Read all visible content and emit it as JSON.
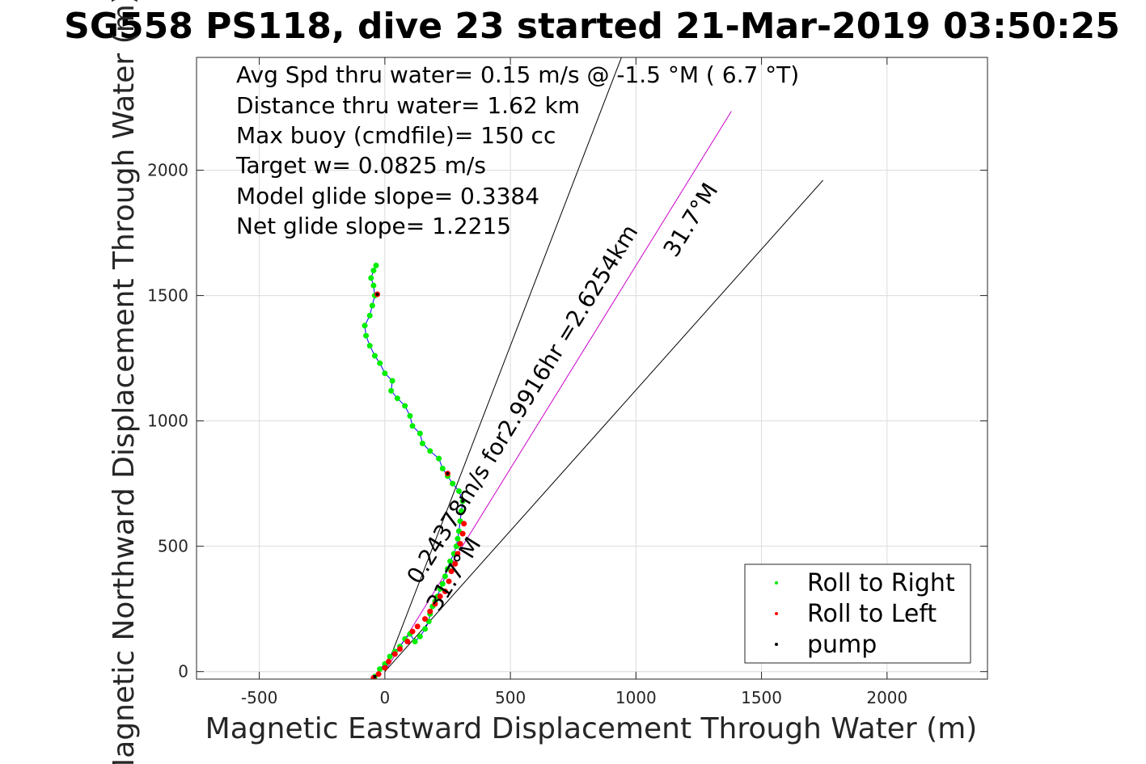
{
  "chart_data": {
    "type": "scatter",
    "title": "SG558 PS118, dive 23 started 21-Mar-2019 03:50:25",
    "xlabel": "Magnetic Eastward Displacement Through Water (m)",
    "ylabel": "Magnetic Northward Displacement Through Water (m)",
    "xlim": [
      -750,
      2400
    ],
    "ylim": [
      -30,
      2450
    ],
    "xticks": [
      -500,
      0,
      500,
      1000,
      1500,
      2000
    ],
    "xtick_labels": [
      "-500",
      "0",
      "500",
      "1000",
      "1500",
      "2000"
    ],
    "yticks": [
      0,
      500,
      1000,
      1500,
      2000
    ],
    "ytick_labels": [
      "0",
      "500",
      "1000",
      "1500",
      "2000"
    ],
    "grid": true,
    "legend_position": "bottom-right",
    "stats_lines": [
      "Avg Spd thru water=  0.15 m/s @  -1.5 °M (  6.7 °T)",
      "Distance thru water=  1.62 km",
      "Max buoy (cmdfile)= 150 cc",
      "Target w= 0.0825 m/s",
      "Model glide slope= 0.3384",
      "Net glide slope= 1.2215"
    ],
    "annotations": {
      "course_line_label": "0.24378m/s for2.9916hr =2.6254km",
      "course_heading_label": "31.7°M",
      "lower_heading_label": "31.7°M"
    },
    "series": [
      {
        "name": "Roll to Right",
        "color": "#00ee00",
        "points": [
          [
            -40,
            -20
          ],
          [
            -20,
            10
          ],
          [
            0,
            30
          ],
          [
            20,
            60
          ],
          [
            40,
            80
          ],
          [
            60,
            100
          ],
          [
            80,
            130
          ],
          [
            100,
            150
          ],
          [
            120,
            120
          ],
          [
            140,
            140
          ],
          [
            160,
            170
          ],
          [
            175,
            200
          ],
          [
            180,
            230
          ],
          [
            190,
            260
          ],
          [
            200,
            280
          ],
          [
            210,
            300
          ],
          [
            220,
            330
          ],
          [
            230,
            350
          ],
          [
            240,
            380
          ],
          [
            250,
            410
          ],
          [
            260,
            440
          ],
          [
            275,
            470
          ],
          [
            285,
            500
          ],
          [
            290,
            530
          ],
          [
            295,
            560
          ],
          [
            300,
            600
          ],
          [
            305,
            640
          ],
          [
            310,
            680
          ],
          [
            295,
            720
          ],
          [
            270,
            750
          ],
          [
            250,
            780
          ],
          [
            230,
            810
          ],
          [
            215,
            850
          ],
          [
            180,
            880
          ],
          [
            150,
            910
          ],
          [
            140,
            950
          ],
          [
            110,
            980
          ],
          [
            100,
            1020
          ],
          [
            80,
            1060
          ],
          [
            50,
            1090
          ],
          [
            25,
            1120
          ],
          [
            30,
            1160
          ],
          [
            0,
            1190
          ],
          [
            -20,
            1230
          ],
          [
            -40,
            1260
          ],
          [
            -60,
            1300
          ],
          [
            -75,
            1340
          ],
          [
            -80,
            1380
          ],
          [
            -60,
            1420
          ],
          [
            -50,
            1460
          ],
          [
            -40,
            1500
          ],
          [
            -45,
            1540
          ],
          [
            -55,
            1570
          ],
          [
            -45,
            1600
          ],
          [
            -35,
            1620
          ]
        ]
      },
      {
        "name": "Roll to Left",
        "color": "#ff0000",
        "points": [
          [
            -45,
            -25
          ],
          [
            -25,
            -10
          ],
          [
            0,
            15
          ],
          [
            15,
            40
          ],
          [
            40,
            70
          ],
          [
            60,
            90
          ],
          [
            90,
            120
          ],
          [
            110,
            160
          ],
          [
            130,
            180
          ],
          [
            160,
            210
          ],
          [
            180,
            240
          ],
          [
            200,
            270
          ],
          [
            220,
            300
          ],
          [
            240,
            320
          ],
          [
            255,
            360
          ],
          [
            265,
            400
          ],
          [
            280,
            430
          ],
          [
            290,
            470
          ],
          [
            300,
            510
          ],
          [
            310,
            550
          ],
          [
            315,
            590
          ],
          [
            250,
            790
          ],
          [
            -30,
            1505
          ]
        ]
      },
      {
        "name": "pump",
        "color": "#000000",
        "points": [
          [
            -40,
            -20
          ],
          [
            310,
            680
          ],
          [
            250,
            790
          ],
          [
            -30,
            1505
          ]
        ]
      }
    ],
    "reference_lines": [
      {
        "name": "course",
        "color": "#cc00cc",
        "from": [
          0,
          0
        ],
        "to": [
          1380,
          2235
        ]
      },
      {
        "name": "bound-left",
        "color": "#000000",
        "from": [
          0,
          0
        ],
        "to": [
          1000,
          2600
        ]
      },
      {
        "name": "bound-right",
        "color": "#000000",
        "from": [
          0,
          0
        ],
        "to": [
          1745,
          1960
        ]
      }
    ]
  }
}
